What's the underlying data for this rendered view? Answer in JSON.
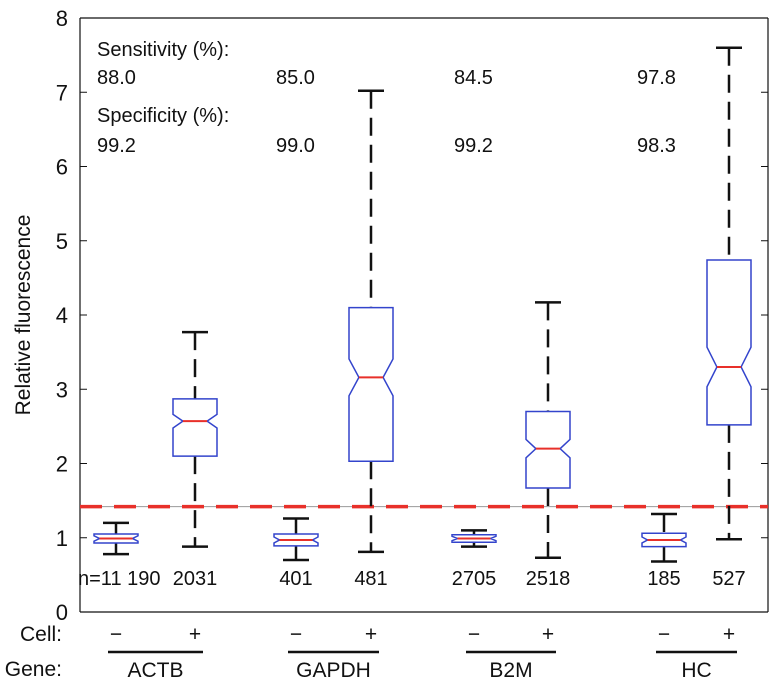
{
  "chart_data": {
    "type": "box",
    "ylabel": "Relative fluorescence",
    "ylim": [
      0,
      8
    ],
    "yticks": [
      "0",
      "1",
      "2",
      "3",
      "4",
      "5",
      "6",
      "7",
      "8"
    ],
    "threshold": {
      "value": 1.42,
      "color": "#e8302a",
      "style": "dashed"
    },
    "colors": {
      "box": "#3344cc",
      "median": "#e8302a",
      "whisker": "#111111"
    },
    "boxes": [
      {
        "gene": "ACTB",
        "cell": "−",
        "n": "n=11 190",
        "whisker_low": 0.78,
        "q1": 0.93,
        "median": 0.99,
        "q3": 1.05,
        "whisker_high": 1.2
      },
      {
        "gene": "ACTB",
        "cell": "+",
        "n": "2031",
        "whisker_low": 0.88,
        "q1": 2.1,
        "median": 2.57,
        "q3": 2.87,
        "whisker_high": 3.77
      },
      {
        "gene": "GAPDH",
        "cell": "−",
        "n": "401",
        "whisker_low": 0.7,
        "q1": 0.89,
        "median": 0.97,
        "q3": 1.05,
        "whisker_high": 1.26
      },
      {
        "gene": "GAPDH",
        "cell": "+",
        "n": "481",
        "whisker_low": 0.81,
        "q1": 2.03,
        "median": 3.16,
        "q3": 4.1,
        "whisker_high": 7.02
      },
      {
        "gene": "B2M",
        "cell": "−",
        "n": "2705",
        "whisker_low": 0.88,
        "q1": 0.94,
        "median": 0.99,
        "q3": 1.04,
        "whisker_high": 1.1
      },
      {
        "gene": "B2M",
        "cell": "+",
        "n": "2518",
        "whisker_low": 0.73,
        "q1": 1.67,
        "median": 2.2,
        "q3": 2.7,
        "whisker_high": 4.17
      },
      {
        "gene": "HC",
        "cell": "−",
        "n": "185",
        "whisker_low": 0.68,
        "q1": 0.88,
        "median": 0.97,
        "q3": 1.06,
        "whisker_high": 1.32
      },
      {
        "gene": "HC",
        "cell": "+",
        "n": "527",
        "whisker_low": 0.98,
        "q1": 2.52,
        "median": 3.3,
        "q3": 4.74,
        "whisker_high": 7.6
      }
    ],
    "annotations": {
      "sensitivity_label": "Sensitivity (%):",
      "specificity_label": "Specificity (%):",
      "sensitivity": [
        "88.0",
        "85.0",
        "84.5",
        "97.8"
      ],
      "specificity": [
        "99.2",
        "99.0",
        "99.2",
        "98.3"
      ]
    },
    "row_labels": {
      "cell": "Cell:",
      "gene": "Gene:"
    },
    "genes": [
      "ACTB",
      "GAPDH",
      "B2M",
      "HC"
    ]
  }
}
